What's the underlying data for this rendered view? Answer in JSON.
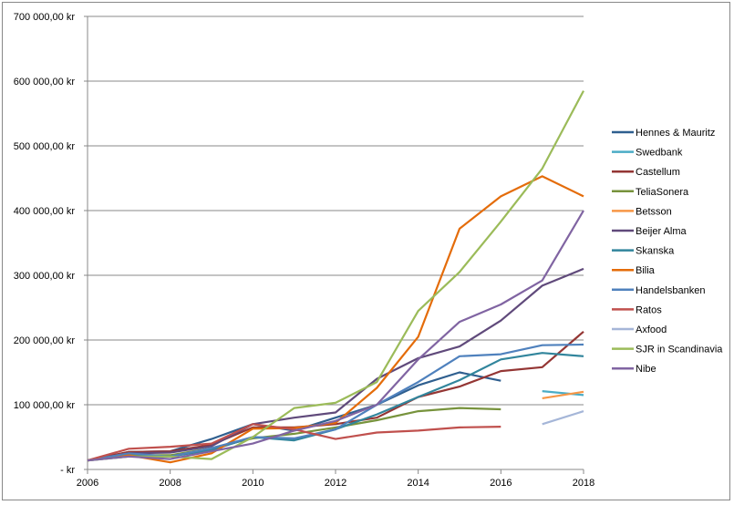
{
  "chart_data": {
    "type": "line",
    "x": [
      2006,
      2007,
      2008,
      2009,
      2010,
      2011,
      2012,
      2013,
      2014,
      2015,
      2016,
      2017,
      2018
    ],
    "xticks": [
      "2006",
      "2008",
      "2010",
      "2012",
      "2014",
      "2016",
      "2018"
    ],
    "ylim": [
      0,
      700000
    ],
    "yticks": [
      "-  kr",
      "100 000,00 kr",
      "200 000,00 kr",
      "300 000,00 kr",
      "400 000,00 kr",
      "500 000,00 kr",
      "600 000,00 kr",
      "700 000,00 kr"
    ],
    "grid": true,
    "legend": "right",
    "series": [
      {
        "name": "Hennes & Mauritz",
        "color": "#2f5f8f",
        "values": [
          14000,
          27000,
          28000,
          47000,
          70000,
          60000,
          80000,
          100000,
          130000,
          150000,
          137000,
          null,
          null
        ]
      },
      {
        "name": "Swedbank",
        "color": "#4bacc6",
        "values": [
          null,
          null,
          null,
          null,
          null,
          null,
          null,
          null,
          null,
          null,
          null,
          121000,
          115000
        ]
      },
      {
        "name": "Castellum",
        "color": "#943634",
        "values": [
          14000,
          27000,
          28000,
          38000,
          65000,
          65000,
          70000,
          80000,
          112000,
          128000,
          152000,
          158000,
          213000
        ]
      },
      {
        "name": "TeliaSonera",
        "color": "#77933c",
        "values": [
          14000,
          22000,
          22000,
          33000,
          48000,
          55000,
          65000,
          76000,
          90000,
          95000,
          93000,
          null,
          null
        ]
      },
      {
        "name": "Betsson",
        "color": "#f79646",
        "values": [
          null,
          null,
          null,
          null,
          null,
          null,
          null,
          null,
          null,
          null,
          null,
          110000,
          120000
        ]
      },
      {
        "name": "Beijer Alma",
        "color": "#604a7b",
        "values": [
          14000,
          25000,
          26000,
          36000,
          70000,
          80000,
          88000,
          140000,
          172000,
          190000,
          230000,
          284000,
          310000
        ]
      },
      {
        "name": "Skanska",
        "color": "#31859c",
        "values": [
          14000,
          20000,
          20000,
          30000,
          50000,
          45000,
          62000,
          85000,
          112000,
          138000,
          170000,
          180000,
          175000
        ]
      },
      {
        "name": "Bilia",
        "color": "#e46c0a",
        "values": [
          14000,
          22000,
          11000,
          25000,
          63000,
          64000,
          72000,
          126000,
          205000,
          372000,
          422000,
          453000,
          422000
        ]
      },
      {
        "name": "Handelsbanken",
        "color": "#4f81bd",
        "values": [
          14000,
          25000,
          20000,
          33000,
          50000,
          48000,
          62000,
          100000,
          135000,
          175000,
          178000,
          192000,
          193000
        ]
      },
      {
        "name": "Ratos",
        "color": "#c0504d",
        "values": [
          14000,
          32000,
          35000,
          40000,
          70000,
          62000,
          47000,
          57000,
          60000,
          65000,
          66000,
          null,
          null
        ]
      },
      {
        "name": "Axfood",
        "color": "#a5b6d8",
        "values": [
          null,
          null,
          null,
          null,
          null,
          null,
          null,
          null,
          null,
          null,
          null,
          70000,
          90000
        ]
      },
      {
        "name": "SJR in Scandinavia",
        "color": "#9bbb59",
        "values": [
          14000,
          20000,
          20000,
          16000,
          50000,
          95000,
          103000,
          135000,
          245000,
          305000,
          383000,
          465000,
          585000
        ]
      },
      {
        "name": "Nibe",
        "color": "#8064a2",
        "values": [
          14000,
          20000,
          16000,
          28000,
          40000,
          60000,
          75000,
          100000,
          170000,
          228000,
          255000,
          292000,
          400000
        ]
      }
    ]
  }
}
